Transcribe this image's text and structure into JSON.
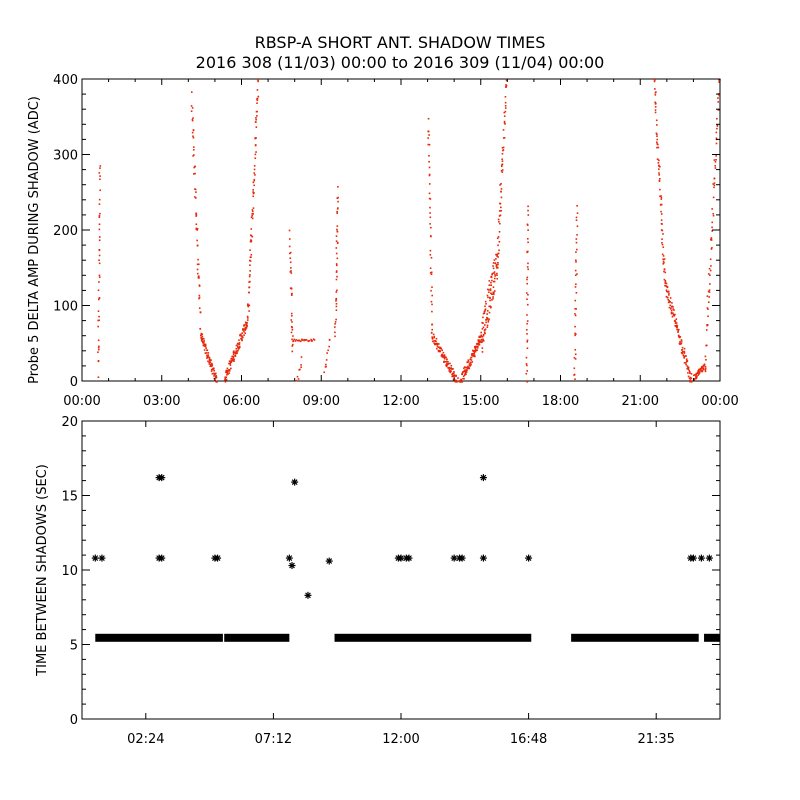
{
  "title": "RBSP-A SHORT ANT. SHADOW TIMES",
  "subtitle": "2016 308 (11/03) 00:00 to 2016 309 (11/04) 00:00",
  "colors": {
    "points": "#e8280a",
    "stars": "#000000",
    "axis": "#000000"
  },
  "chart_data": [
    {
      "type": "scatter",
      "name": "probe5-delta-amp",
      "ylabel": "Probe 5 DELTA AMP DURING SHADOW (ADC)",
      "xlabel": "",
      "xlim": [
        0,
        24
      ],
      "ylim": [
        0,
        400
      ],
      "xtick_values": [
        0,
        3,
        6,
        9,
        12,
        15,
        18,
        21,
        24
      ],
      "xtick_labels": [
        "00:00",
        "03:00",
        "06:00",
        "09:00",
        "12:00",
        "15:00",
        "18:00",
        "21:00",
        "00:00"
      ],
      "ytick_values": [
        0,
        100,
        200,
        300,
        400
      ],
      "ytick_labels": [
        "0",
        "100",
        "200",
        "300",
        "400"
      ],
      "segments": [
        {
          "x0": 0.58,
          "x1": 0.65,
          "y0": 10,
          "y1": 290,
          "n": 40,
          "spread": 20
        },
        {
          "x0": 4.1,
          "x1": 4.45,
          "y0": 370,
          "y1": 60,
          "n": 60,
          "spread": 30
        },
        {
          "x0": 4.45,
          "x1": 5.05,
          "y0": 60,
          "y1": 0,
          "n": 80,
          "spread": 12
        },
        {
          "x0": 5.35,
          "x1": 6.2,
          "y0": 5,
          "y1": 80,
          "n": 110,
          "spread": 14
        },
        {
          "x0": 6.2,
          "x1": 6.6,
          "y0": 80,
          "y1": 400,
          "n": 80,
          "spread": 30
        },
        {
          "x0": 7.8,
          "x1": 7.9,
          "y0": 190,
          "y1": 40,
          "n": 30,
          "spread": 25
        },
        {
          "x0": 7.9,
          "x1": 8.7,
          "y0": 55,
          "y1": 55,
          "n": 25,
          "spread": 3
        },
        {
          "x0": 8.05,
          "x1": 8.25,
          "y0": 0,
          "y1": 30,
          "n": 8,
          "spread": 10
        },
        {
          "x0": 9.1,
          "x1": 9.3,
          "y0": 10,
          "y1": 60,
          "n": 10,
          "spread": 10
        },
        {
          "x0": 9.5,
          "x1": 9.6,
          "y0": 60,
          "y1": 250,
          "n": 40,
          "spread": 20
        },
        {
          "x0": 13.0,
          "x1": 13.15,
          "y0": 350,
          "y1": 60,
          "n": 40,
          "spread": 25
        },
        {
          "x0": 13.15,
          "x1": 14.1,
          "y0": 60,
          "y1": 0,
          "n": 110,
          "spread": 12
        },
        {
          "x0": 14.2,
          "x1": 15.0,
          "y0": 0,
          "y1": 60,
          "n": 110,
          "spread": 14
        },
        {
          "x0": 15.0,
          "x1": 15.6,
          "y0": 60,
          "y1": 160,
          "n": 110,
          "spread": 45
        },
        {
          "x0": 15.6,
          "x1": 15.95,
          "y0": 160,
          "y1": 400,
          "n": 60,
          "spread": 40
        },
        {
          "x0": 16.7,
          "x1": 16.75,
          "y0": 0,
          "y1": 235,
          "n": 35,
          "spread": 15
        },
        {
          "x0": 18.5,
          "x1": 18.6,
          "y0": 0,
          "y1": 230,
          "n": 35,
          "spread": 15
        },
        {
          "x0": 21.5,
          "x1": 21.9,
          "y0": 400,
          "y1": 130,
          "n": 70,
          "spread": 30
        },
        {
          "x0": 21.9,
          "x1": 22.9,
          "y0": 130,
          "y1": 0,
          "n": 120,
          "spread": 15
        },
        {
          "x0": 23.0,
          "x1": 23.4,
          "y0": 5,
          "y1": 20,
          "n": 40,
          "spread": 8
        },
        {
          "x0": 23.4,
          "x1": 23.95,
          "y0": 20,
          "y1": 400,
          "n": 70,
          "spread": 30
        }
      ]
    },
    {
      "type": "scatter",
      "name": "time-between-shadows",
      "ylabel": "TIME BETWEEN SHADOWS (SEC)",
      "xlabel": "",
      "xlim": [
        0,
        24
      ],
      "ylim": [
        0,
        20
      ],
      "xtick_values": [
        2.4,
        7.2,
        12,
        16.8,
        21.6
      ],
      "xtick_labels": [
        "02:24",
        "07:12",
        "12:00",
        "16:48",
        "21:35"
      ],
      "ytick_values": [
        0,
        5,
        10,
        15,
        20
      ],
      "ytick_labels": [
        "0",
        "5",
        "10",
        "15",
        "20"
      ],
      "baseline_value": 5.45,
      "baseline_ranges": [
        [
          0.5,
          5.3
        ],
        [
          5.35,
          7.8
        ],
        [
          9.5,
          16.9
        ],
        [
          18.4,
          23.2
        ],
        [
          23.4,
          24
        ]
      ],
      "points": [
        [
          0.5,
          10.8
        ],
        [
          0.75,
          10.8
        ],
        [
          2.9,
          16.2
        ],
        [
          3.0,
          16.2
        ],
        [
          2.9,
          10.8
        ],
        [
          3.0,
          10.8
        ],
        [
          5.0,
          10.8
        ],
        [
          5.1,
          10.8
        ],
        [
          7.8,
          10.8
        ],
        [
          7.9,
          10.3
        ],
        [
          8.0,
          15.9
        ],
        [
          8.5,
          8.3
        ],
        [
          9.3,
          10.6
        ],
        [
          11.9,
          10.8
        ],
        [
          12.0,
          10.8
        ],
        [
          12.2,
          10.8
        ],
        [
          12.3,
          10.8
        ],
        [
          14.0,
          10.8
        ],
        [
          14.2,
          10.8
        ],
        [
          14.3,
          10.8
        ],
        [
          15.1,
          16.2
        ],
        [
          15.1,
          10.8
        ],
        [
          16.8,
          10.8
        ],
        [
          22.9,
          10.8
        ],
        [
          23.0,
          10.8
        ],
        [
          23.3,
          10.8
        ],
        [
          23.6,
          10.8
        ]
      ]
    }
  ]
}
